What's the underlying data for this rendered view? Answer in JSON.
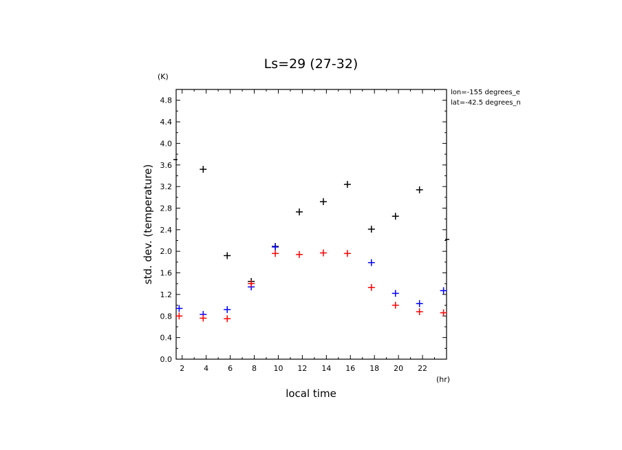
{
  "chart_data": {
    "type": "scatter",
    "title": "Ls=29 (27-32)",
    "xlabel": "local time",
    "ylabel": "std. dev. (temperature)",
    "x_unit": "(hr)",
    "y_unit": "(K)",
    "xlim": [
      1.5,
      24
    ],
    "ylim": [
      0,
      5.0
    ],
    "x_ticks": [
      "2",
      "4",
      "6",
      "8",
      "10",
      "12",
      "14",
      "16",
      "18",
      "20",
      "22"
    ],
    "y_ticks": [
      "0.0",
      "0.4",
      "0.8",
      "1.2",
      "1.6",
      "2.0",
      "2.4",
      "2.8",
      "3.2",
      "3.6",
      "4.0",
      "4.4",
      "4.8"
    ],
    "annotations": [
      "lon=-155 degrees_e",
      "lat=-42.5 degrees_n"
    ],
    "series": [
      {
        "name": "black",
        "color": "#000000",
        "x": [
          3.75,
          5.75,
          7.75,
          9.75,
          11.75,
          13.75,
          15.75,
          17.75,
          19.75,
          21.75
        ],
        "y": [
          3.52,
          1.92,
          1.44,
          2.09,
          2.73,
          2.92,
          3.24,
          2.41,
          2.65,
          3.14
        ]
      },
      {
        "name": "blue",
        "color": "#0000ff",
        "x": [
          1.75,
          3.75,
          5.75,
          7.75,
          9.75,
          17.75,
          19.75,
          21.75,
          23.75
        ],
        "y": [
          0.94,
          0.83,
          0.92,
          1.34,
          2.08,
          1.79,
          1.22,
          1.03,
          1.27
        ]
      },
      {
        "name": "red",
        "color": "#ff0000",
        "x": [
          1.75,
          3.75,
          5.75,
          7.75,
          9.75,
          11.75,
          13.75,
          15.75,
          17.75,
          19.75,
          21.75,
          23.75
        ],
        "y": [
          0.8,
          0.76,
          0.75,
          1.4,
          1.96,
          1.94,
          1.97,
          1.96,
          1.33,
          1.0,
          0.88,
          0.86
        ]
      }
    ],
    "edge_dashes": [
      {
        "side": "left",
        "y": 3.7,
        "color": "#000000"
      },
      {
        "side": "right",
        "y": 2.22,
        "color": "#000000"
      }
    ]
  }
}
